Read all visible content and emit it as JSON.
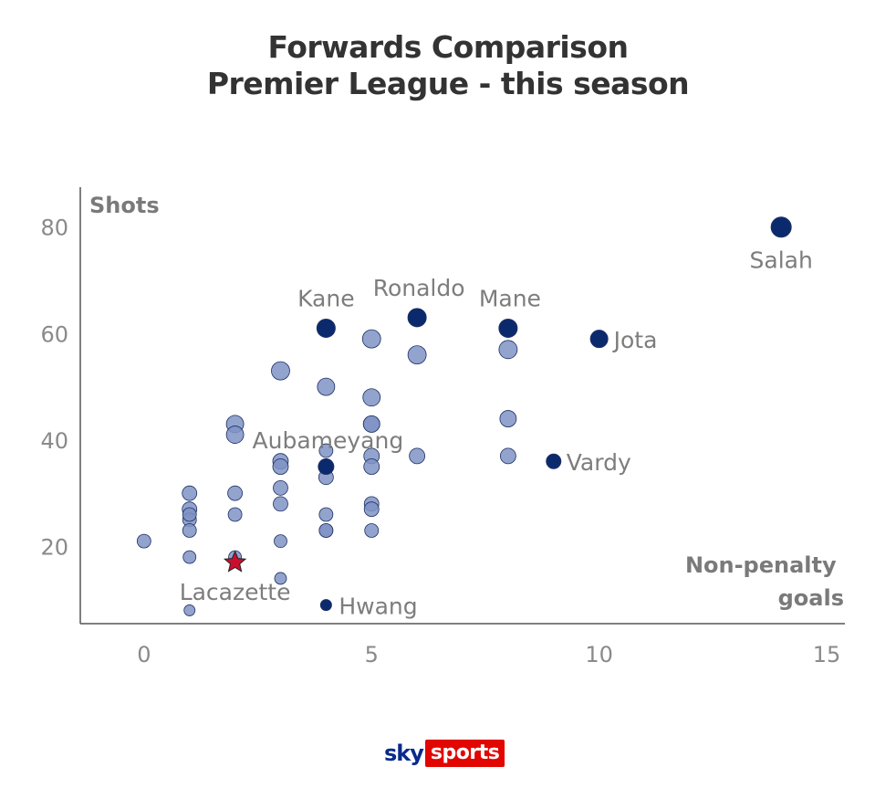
{
  "title": {
    "line1": "Forwards Comparison",
    "line2": "Premier League - this season"
  },
  "colors": {
    "highlight": "#0b2a6e",
    "base_fill": "#7f93c4",
    "stroke": "#1c2f63",
    "star": "#c8102e",
    "axis": "#555555"
  },
  "logo": {
    "sky": "sky",
    "sports": "sports"
  },
  "chart_data": {
    "type": "scatter",
    "xlabel": "Non-penalty goals",
    "ylabel": "Shots",
    "xlim": [
      -1.4,
      15.4
    ],
    "ylim": [
      5.5,
      87.5
    ],
    "x_ticks": [
      0,
      5,
      10,
      15
    ],
    "y_ticks": [
      20,
      40,
      60,
      80
    ],
    "grid": false,
    "points": [
      {
        "x": 14,
        "y": 80,
        "style": "highlight",
        "size": 11,
        "label": "Salah"
      },
      {
        "x": 4,
        "y": 61,
        "style": "highlight",
        "size": 10,
        "label": "Kane"
      },
      {
        "x": 6,
        "y": 63,
        "style": "highlight",
        "size": 10,
        "label": "Ronaldo"
      },
      {
        "x": 8,
        "y": 61,
        "style": "highlight",
        "size": 10,
        "label": "Mane"
      },
      {
        "x": 10,
        "y": 59,
        "style": "highlight",
        "size": 9.5,
        "label": "Jota"
      },
      {
        "x": 9,
        "y": 36,
        "style": "highlight",
        "size": 8,
        "label": "Vardy"
      },
      {
        "x": 4,
        "y": 9,
        "style": "highlight",
        "size": 6,
        "label": "Hwang"
      },
      {
        "x": 4,
        "y": 35,
        "style": "highlight",
        "size": 8.5,
        "label": "Aubameyang"
      },
      {
        "x": 2,
        "y": 17,
        "style": "star",
        "size": 12,
        "label": "Lacazette"
      },
      {
        "x": 0,
        "y": 21,
        "style": "base",
        "size": 7.5
      },
      {
        "x": 1,
        "y": 30,
        "style": "base",
        "size": 8
      },
      {
        "x": 1,
        "y": 27,
        "style": "base",
        "size": 8
      },
      {
        "x": 1,
        "y": 25,
        "style": "base",
        "size": 7.5
      },
      {
        "x": 1,
        "y": 26,
        "style": "base",
        "size": 7.5
      },
      {
        "x": 1,
        "y": 23,
        "style": "base",
        "size": 7.5
      },
      {
        "x": 1,
        "y": 18,
        "style": "base",
        "size": 7
      },
      {
        "x": 1,
        "y": 8,
        "style": "base",
        "size": 6
      },
      {
        "x": 2,
        "y": 43,
        "style": "base",
        "size": 9.5
      },
      {
        "x": 2,
        "y": 41,
        "style": "base",
        "size": 9.5
      },
      {
        "x": 2,
        "y": 30,
        "style": "base",
        "size": 8
      },
      {
        "x": 2,
        "y": 26,
        "style": "base",
        "size": 7.5
      },
      {
        "x": 2,
        "y": 18,
        "style": "base",
        "size": 7
      },
      {
        "x": 3,
        "y": 53,
        "style": "base",
        "size": 10
      },
      {
        "x": 3,
        "y": 36,
        "style": "base",
        "size": 8.5
      },
      {
        "x": 3,
        "y": 35,
        "style": "base",
        "size": 8.5
      },
      {
        "x": 3,
        "y": 31,
        "style": "base",
        "size": 8
      },
      {
        "x": 3,
        "y": 28,
        "style": "base",
        "size": 8
      },
      {
        "x": 3,
        "y": 21,
        "style": "base",
        "size": 7
      },
      {
        "x": 3,
        "y": 14,
        "style": "base",
        "size": 6.5
      },
      {
        "x": 4,
        "y": 50,
        "style": "base",
        "size": 9.5
      },
      {
        "x": 4,
        "y": 38,
        "style": "base",
        "size": 7.5
      },
      {
        "x": 4,
        "y": 33,
        "style": "base",
        "size": 8
      },
      {
        "x": 4,
        "y": 26,
        "style": "base",
        "size": 7.5
      },
      {
        "x": 4,
        "y": 23,
        "style": "base",
        "size": 7.5
      },
      {
        "x": 4,
        "y": 23,
        "style": "base",
        "size": 7.5
      },
      {
        "x": 5,
        "y": 59,
        "style": "base",
        "size": 10
      },
      {
        "x": 5,
        "y": 48,
        "style": "base",
        "size": 9.5
      },
      {
        "x": 5,
        "y": 43,
        "style": "base",
        "size": 9
      },
      {
        "x": 5,
        "y": 43,
        "style": "base",
        "size": 9
      },
      {
        "x": 5,
        "y": 37,
        "style": "base",
        "size": 8.5
      },
      {
        "x": 5,
        "y": 35,
        "style": "base",
        "size": 8.5
      },
      {
        "x": 5,
        "y": 28,
        "style": "base",
        "size": 8
      },
      {
        "x": 5,
        "y": 27,
        "style": "base",
        "size": 8
      },
      {
        "x": 5,
        "y": 23,
        "style": "base",
        "size": 7.5
      },
      {
        "x": 6,
        "y": 56,
        "style": "base",
        "size": 10
      },
      {
        "x": 6,
        "y": 37,
        "style": "base",
        "size": 8.5
      },
      {
        "x": 8,
        "y": 57,
        "style": "base",
        "size": 10
      },
      {
        "x": 8,
        "y": 44,
        "style": "base",
        "size": 9
      },
      {
        "x": 8,
        "y": 37,
        "style": "base",
        "size": 8.5
      }
    ]
  }
}
